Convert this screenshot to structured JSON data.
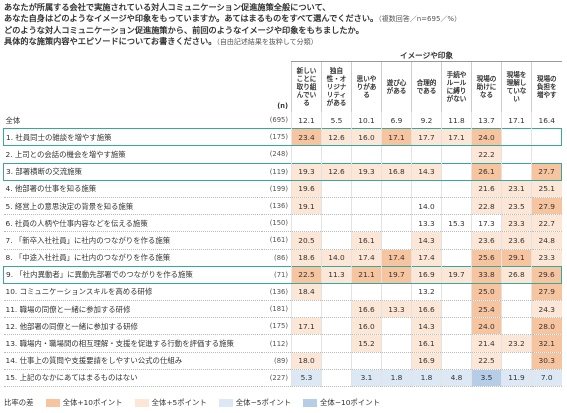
{
  "header": {
    "lines": [
      "あなたが所属する会社で実施されている対人コミュニケーション促進施策全般について、",
      "あなた自身はどのようなイメージや印象をもっていますか。あてはまるものをすべて選んでください。",
      "どのような対人コミュニケーション促進施策から、前回のようなイメージや印象をもちましたか。",
      "具体的な施策内容やエピソードについてお書きください。"
    ],
    "notes": [
      "（複数回答／n=695／%）",
      "（自由記述結果を抜粋して分類）"
    ]
  },
  "table": {
    "group_header": "イメージや印象",
    "n_header": "(n)",
    "columns": [
      "新しいことに取り組んでいる",
      "独自性・オリジナリティがある",
      "思いやりがある",
      "遊び心がある",
      "合理的である",
      "手続やルールに縛りがない",
      "現場の助けになる",
      "現場を理解していない",
      "現場の負担を増やす"
    ],
    "rows": [
      {
        "label": "全体",
        "n": "(695)",
        "values": [
          "12.1",
          "5.5",
          "10.1",
          "6.9",
          "9.2",
          "11.8",
          "13.7",
          "17.1",
          "16.4"
        ]
      },
      {
        "label": "1. 社員同士の雑談を増やす施策",
        "n": "(175)",
        "highlight": true,
        "values": [
          "23.4",
          "12.6",
          "16.0",
          "17.1",
          "17.7",
          "17.1",
          "24.0",
          null,
          null
        ]
      },
      {
        "label": "2. 上司との会話の機会を増やす施策",
        "n": "(248)",
        "values": [
          null,
          null,
          null,
          null,
          null,
          null,
          "22.2",
          null,
          null
        ]
      },
      {
        "label": "3. 部署横断の交流施策",
        "n": "(119)",
        "highlight": true,
        "values": [
          "19.3",
          "12.6",
          "19.3",
          "16.8",
          "14.3",
          null,
          "26.1",
          null,
          "27.7"
        ]
      },
      {
        "label": "4. 他部署の仕事を知る施策",
        "n": "(199)",
        "values": [
          "19.6",
          null,
          null,
          null,
          null,
          null,
          "21.6",
          "23.1",
          "25.1"
        ]
      },
      {
        "label": "5. 経営上の意思決定の背景を知る施策",
        "n": "(136)",
        "values": [
          "19.1",
          null,
          null,
          null,
          "14.0",
          null,
          "22.8",
          "23.5",
          "27.9"
        ]
      },
      {
        "label": "6. 社員の人柄や仕事内容などを伝える施策",
        "n": "(150)",
        "values": [
          null,
          null,
          null,
          null,
          "13.3",
          "15.3",
          "17.3",
          "23.3",
          "22.7"
        ]
      },
      {
        "label": "7. 「新卒入社社員」に社内のつながりを作る施策",
        "n": "(161)",
        "values": [
          "20.5",
          null,
          "16.1",
          null,
          "14.3",
          null,
          "23.6",
          "23.6",
          "24.8"
        ]
      },
      {
        "label": "8. 「中途入社社員」に社内のつながりを作る施策",
        "n": "(86)",
        "values": [
          "18.6",
          "14.0",
          "17.4",
          "17.4",
          "17.4",
          null,
          "25.6",
          "29.1",
          "23.3"
        ]
      },
      {
        "label": "9. 「社内異動者」に異動先部署でのつながりを作る施策",
        "n": "(71)",
        "highlight": true,
        "values": [
          "22.5",
          "11.3",
          "21.1",
          "19.7",
          "16.9",
          "19.7",
          "33.8",
          "26.8",
          "29.6"
        ]
      },
      {
        "label": "10. コミュニケーションスキルを高める研修",
        "n": "(136)",
        "values": [
          "18.4",
          null,
          null,
          null,
          "13.2",
          null,
          "25.0",
          null,
          "27.9"
        ]
      },
      {
        "label": "11. 職場の同僚と一緒に参加する研修",
        "n": "(181)",
        "values": [
          null,
          null,
          "16.6",
          "13.3",
          "16.6",
          null,
          "25.4",
          null,
          "24.3"
        ]
      },
      {
        "label": "12. 他部署の同僚と一緒に参加する研修",
        "n": "(175)",
        "values": [
          "17.1",
          null,
          "16.0",
          null,
          "14.3",
          null,
          "24.0",
          null,
          "28.0"
        ]
      },
      {
        "label": "13. 職場内・職場間の相互理解・支援を促進する行動を評価する施策",
        "n": "(112)",
        "values": [
          null,
          null,
          "15.2",
          null,
          "16.1",
          null,
          "21.4",
          "23.2",
          "32.1"
        ]
      },
      {
        "label": "14. 仕事上の質問や支援要請をしやすい公式の仕組み",
        "n": "(89)",
        "values": [
          "18.0",
          null,
          null,
          null,
          "16.9",
          null,
          "22.5",
          null,
          "30.3"
        ]
      },
      {
        "label": "15. 上記のなかにあてはまるものはない",
        "n": "(227)",
        "values": [
          "5.3",
          null,
          "3.1",
          "1.8",
          "1.8",
          "4.8",
          "3.5",
          "11.9",
          "7.0"
        ]
      }
    ]
  },
  "legend": {
    "title": "比率の差",
    "items": [
      {
        "label": "全体+10ポイント",
        "color": "#f7c4a0"
      },
      {
        "label": "全体+5ポイント",
        "color": "#fce6d6"
      },
      {
        "label": "全体−5ポイント",
        "color": "#dce9f4"
      },
      {
        "label": "全体−10ポイント",
        "color": "#b5cde6"
      }
    ]
  }
}
